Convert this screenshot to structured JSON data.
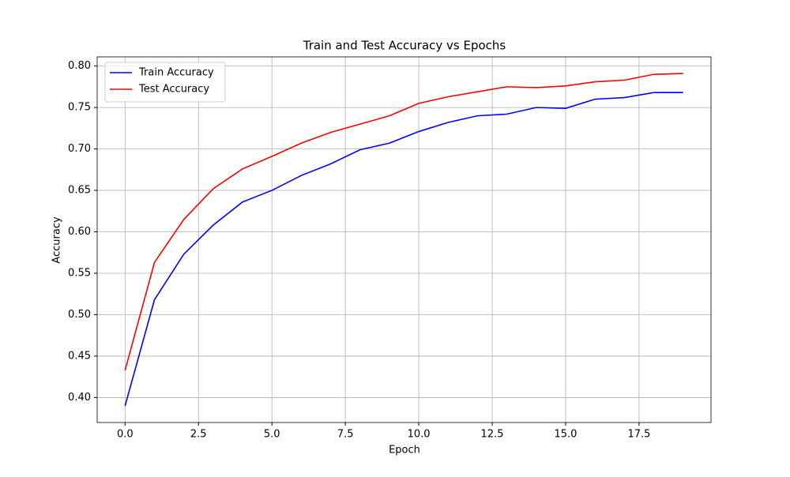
{
  "chart_data": {
    "type": "line",
    "title": "Train and Test Accuracy vs Epochs",
    "x_label": "Epoch",
    "y_label": "Accuracy",
    "x": [
      0,
      1,
      2,
      3,
      4,
      5,
      6,
      7,
      8,
      9,
      10,
      11,
      12,
      13,
      14,
      15,
      16,
      17,
      18,
      19
    ],
    "series": [
      {
        "name": "Train Accuracy",
        "color": "#0000ff",
        "values": [
          0.39,
          0.518,
          0.573,
          0.608,
          0.636,
          0.65,
          0.668,
          0.682,
          0.699,
          0.707,
          0.721,
          0.732,
          0.74,
          0.742,
          0.75,
          0.749,
          0.76,
          0.762,
          0.768,
          0.768
        ]
      },
      {
        "name": "Test Accuracy",
        "color": "#ff0000",
        "values": [
          0.433,
          0.563,
          0.615,
          0.652,
          0.676,
          0.691,
          0.707,
          0.72,
          0.73,
          0.74,
          0.755,
          0.763,
          0.769,
          0.775,
          0.774,
          0.776,
          0.781,
          0.783,
          0.79,
          0.791
        ]
      }
    ],
    "xlim": [
      -0.95,
      19.95
    ],
    "ylim": [
      0.3699,
      0.8111
    ],
    "xticks": [
      {
        "value": 0,
        "label": "0.0"
      },
      {
        "value": 2.5,
        "label": "2.5"
      },
      {
        "value": 5,
        "label": "5.0"
      },
      {
        "value": 7.5,
        "label": "7.5"
      },
      {
        "value": 10,
        "label": "10.0"
      },
      {
        "value": 12.5,
        "label": "12.5"
      },
      {
        "value": 15,
        "label": "15.0"
      },
      {
        "value": 17.5,
        "label": "17.5"
      }
    ],
    "yticks": [
      {
        "value": 0.4,
        "label": "0.40"
      },
      {
        "value": 0.45,
        "label": "0.45"
      },
      {
        "value": 0.5,
        "label": "0.50"
      },
      {
        "value": 0.55,
        "label": "0.55"
      },
      {
        "value": 0.6,
        "label": "0.60"
      },
      {
        "value": 0.65,
        "label": "0.65"
      },
      {
        "value": 0.7,
        "label": "0.70"
      },
      {
        "value": 0.75,
        "label": "0.75"
      },
      {
        "value": 0.8,
        "label": "0.80"
      }
    ],
    "grid": true,
    "legend": "upper-left"
  }
}
